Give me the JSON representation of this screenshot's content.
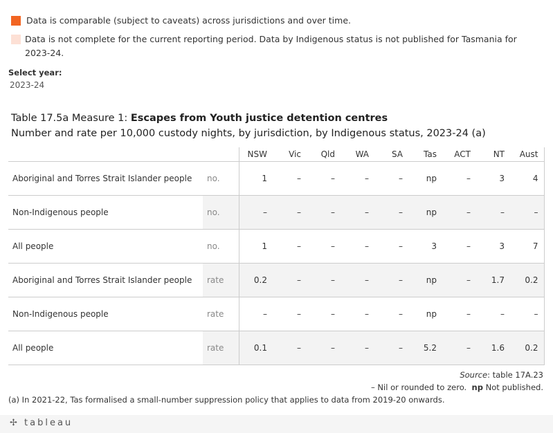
{
  "legend": [
    {
      "color": "#f26522",
      "text": "Data is comparable (subject to caveats) across jurisdictions and over time."
    },
    {
      "color": "#fde0d5",
      "text": "Data is not complete for the current reporting period. Data by Indigenous status is not published for Tasmania for 2023-24."
    }
  ],
  "filter": {
    "label": "Select year:",
    "value": "2023-24"
  },
  "title": {
    "prefix": "Table 17.5a Measure 1: ",
    "bold": "Escapes from Youth justice detention centres",
    "subtitle": "Number and rate per 10,000 custody nights, by jurisdiction, by Indigenous status, 2023-24 (a)"
  },
  "table": {
    "columns": [
      "NSW",
      "Vic",
      "Qld",
      "WA",
      "SA",
      "Tas",
      "ACT",
      "NT",
      "Aust"
    ],
    "rows": [
      {
        "label": "Aboriginal and Torres Strait Islander people",
        "unit": "no.",
        "values": [
          "1",
          "–",
          "–",
          "–",
          "–",
          "np",
          "–",
          "3",
          "4"
        ]
      },
      {
        "label": "Non-Indigenous people",
        "unit": "no.",
        "values": [
          "–",
          "–",
          "–",
          "–",
          "–",
          "np",
          "–",
          "–",
          "–"
        ]
      },
      {
        "label": "All people",
        "unit": "no.",
        "values": [
          "1",
          "–",
          "–",
          "–",
          "–",
          "3",
          "–",
          "3",
          "7"
        ]
      },
      {
        "label": "Aboriginal and Torres Strait Islander people",
        "unit": "rate",
        "values": [
          "0.2",
          "–",
          "–",
          "–",
          "–",
          "np",
          "–",
          "1.7",
          "0.2"
        ]
      },
      {
        "label": "Non-Indigenous people",
        "unit": "rate",
        "values": [
          "–",
          "–",
          "–",
          "–",
          "–",
          "np",
          "–",
          "–",
          "–"
        ]
      },
      {
        "label": "All people",
        "unit": "rate",
        "values": [
          "0.1",
          "–",
          "–",
          "–",
          "–",
          "5.2",
          "–",
          "1.6",
          "0.2"
        ]
      }
    ]
  },
  "footer": {
    "source_label": "Source",
    "source_text": ": table 17A.23",
    "nil": "– Nil or rounded to zero.",
    "np_bold": "np",
    "np_text": " Not published.",
    "note": "(a) In 2021-22, Tas formalised a small-number suppression policy that applies to data from 2019-20 onwards."
  },
  "branding": {
    "logo": "+ t a b l e a u"
  }
}
